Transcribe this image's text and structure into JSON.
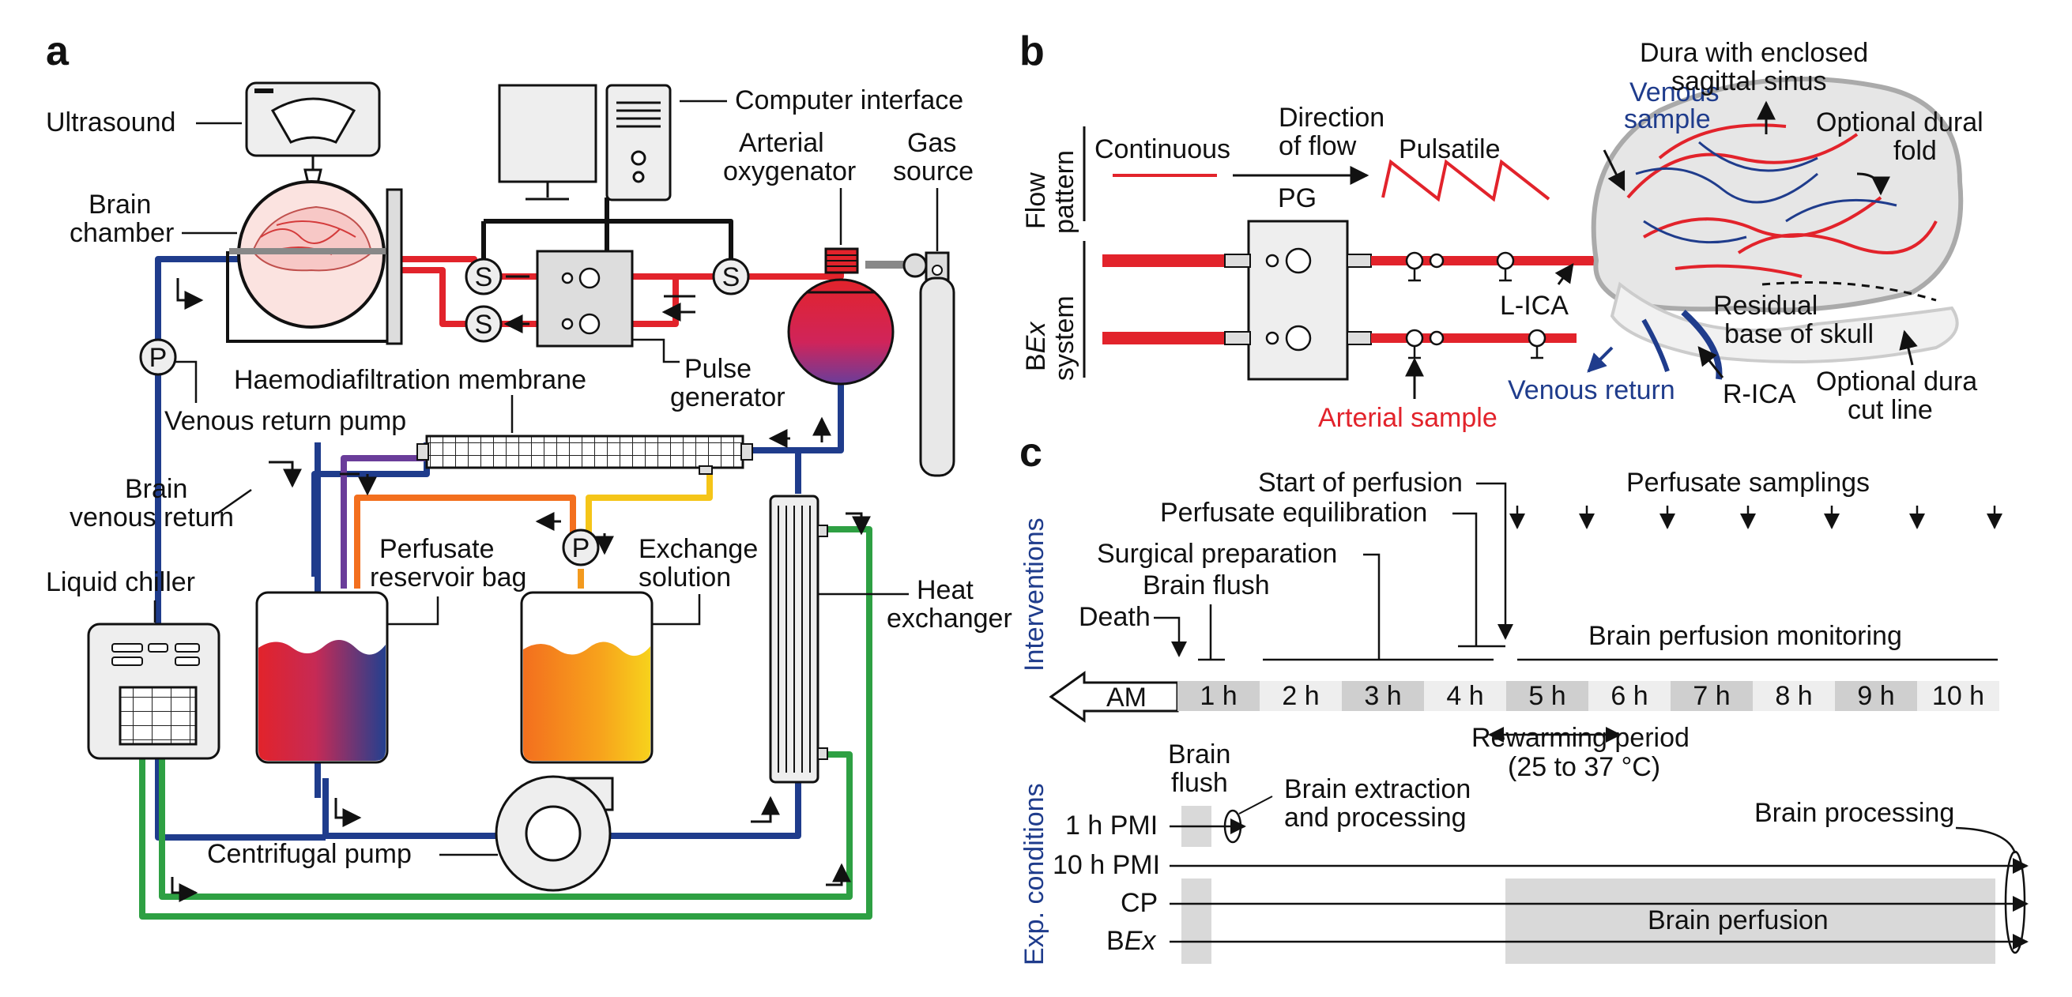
{
  "panels": {
    "a": "a",
    "b": "b",
    "c": "c"
  },
  "colors": {
    "arterial": "#e2232b",
    "venous": "#1f3c8c",
    "chiller": "#2ea043",
    "exchange": "#f39a1e",
    "yellow": "#f5c518",
    "purple": "#6a3d9a",
    "grey_fill": "#d9d9d9",
    "label_blue": "#1f3c8c"
  },
  "panel_a": {
    "ultrasound": "Ultrasound",
    "computer_interface": "Computer interface",
    "arterial_oxygenator_1": "Arterial",
    "arterial_oxygenator_2": "oxygenator",
    "gas_source_1": "Gas",
    "gas_source_2": "source",
    "brain_chamber_1": "Brain",
    "brain_chamber_2": "chamber",
    "sensor_letter": "S",
    "pump_letter": "P",
    "haemodiafiltration": "Haemodiafiltration membrane",
    "pulse_generator_1": "Pulse",
    "pulse_generator_2": "generator",
    "venous_return_pump": "Venous return pump",
    "brain_venous_return_1": "Brain",
    "brain_venous_return_2": "venous return",
    "perfusate_reservoir_1": "Perfusate",
    "perfusate_reservoir_2": "reservoir bag",
    "exchange_solution_1": "Exchange",
    "exchange_solution_2": "solution",
    "heat_exchanger_1": "Heat",
    "heat_exchanger_2": "exchanger",
    "liquid_chiller": "Liquid chiller",
    "centrifugal_pump": "Centrifugal pump"
  },
  "panel_b": {
    "flow_pattern_1": "Flow",
    "flow_pattern_2": "pattern",
    "continuous": "Continuous",
    "direction_1": "Direction",
    "direction_2": "of flow",
    "pulsatile": "Pulsatile",
    "pg": "PG",
    "bex_system_1_a": "B",
    "bex_system_1_b": "Ex",
    "bex_system_2": "system",
    "venous_sample_1": "Venous",
    "venous_sample_2": "sample",
    "dura_1": "Dura with enclosed",
    "dura_2": "sagittal sinus",
    "optional_fold_1": "Optional dural",
    "optional_fold_2": "fold",
    "l_ica": "L-ICA",
    "residual_1": "Residual",
    "residual_2": "base of skull",
    "venous_return": "Venous return",
    "r_ica": "R-ICA",
    "optional_cut_1": "Optional dura",
    "optional_cut_2": "cut line",
    "arterial_sample": "Arterial sample"
  },
  "panel_c": {
    "interventions_axis": "Interventions",
    "conditions_axis": "Exp. conditions",
    "start_of_perfusion": "Start of perfusion",
    "perfusate_samplings": "Perfusate samplings",
    "perfusate_equilibration": "Perfusate equilibration",
    "surgical_preparation": "Surgical preparation",
    "brain_flush": "Brain flush",
    "death": "Death",
    "brain_perfusion_monitoring": "Brain perfusion monitoring",
    "am": "AM",
    "hours": [
      "1 h",
      "2 h",
      "3 h",
      "4 h",
      "5 h",
      "6 h",
      "7 h",
      "8 h",
      "9 h",
      "10 h"
    ],
    "rewarming_1": "Rewarming period",
    "rewarming_2": "(25 to 37 °C)",
    "brain_flush_1": "Brain",
    "brain_flush_2": "flush",
    "brain_extraction_1": "Brain extraction",
    "brain_extraction_2": "and processing",
    "brain_processing": "Brain processing",
    "row_1h_pmi": "1 h PMI",
    "row_10h_pmi": "10 h PMI",
    "row_cp": "CP",
    "row_bex_a": "B",
    "row_bex_b": "Ex",
    "brain_perfusion": "Brain perfusion"
  }
}
